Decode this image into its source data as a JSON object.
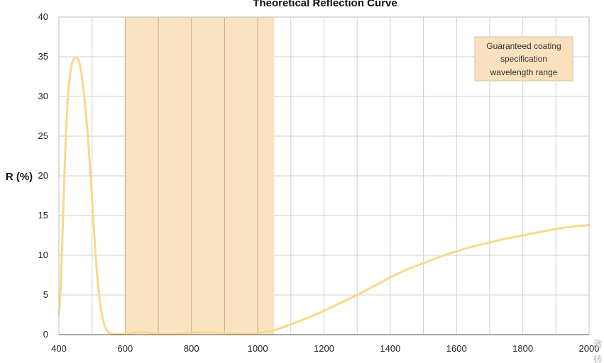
{
  "chart_data": {
    "type": "line",
    "title": "Theoretical Reflection Curve",
    "xlabel": "",
    "ylabel": "R (%)",
    "xlim": [
      400,
      2000
    ],
    "ylim": [
      0,
      40
    ],
    "x_ticks": [
      400,
      600,
      800,
      1000,
      1200,
      1400,
      1600,
      1800,
      2000
    ],
    "y_ticks": [
      0,
      5,
      10,
      15,
      20,
      25,
      30,
      35,
      40
    ],
    "grid": true,
    "legend_position": "top-right",
    "shaded_region": {
      "x_range": [
        600,
        1050
      ],
      "label": "Guaranteed coating specification wavelength range",
      "label_lines": [
        "Guaranteed coating",
        "specification",
        "wavelength range"
      ],
      "color": "#fae0bd"
    },
    "series": [
      {
        "color": "#f8d98a",
        "x": [
          400,
          405,
          410,
          415,
          420,
          425,
          430,
          440,
          450,
          455,
          460,
          465,
          470,
          480,
          490,
          500,
          510,
          520,
          530,
          540,
          550,
          560,
          570,
          580,
          590,
          600,
          620,
          640,
          660,
          680,
          700,
          720,
          740,
          760,
          780,
          800,
          820,
          840,
          860,
          880,
          900,
          920,
          940,
          960,
          980,
          1000,
          1020,
          1050,
          1100,
          1150,
          1200,
          1250,
          1300,
          1350,
          1400,
          1450,
          1500,
          1550,
          1600,
          1650,
          1700,
          1750,
          1800,
          1850,
          1900,
          1950,
          2000
        ],
        "y": [
          2.5,
          5.5,
          11.5,
          18.0,
          24.0,
          28.5,
          31.5,
          34.2,
          34.9,
          34.8,
          34.5,
          33.6,
          32.3,
          28.5,
          23.5,
          17.0,
          10.5,
          5.5,
          2.5,
          0.9,
          0.3,
          0.1,
          0.05,
          0.05,
          0.05,
          0.1,
          0.2,
          0.35,
          0.3,
          0.2,
          0.1,
          0.05,
          0.05,
          0.1,
          0.2,
          0.25,
          0.3,
          0.3,
          0.3,
          0.25,
          0.2,
          0.15,
          0.1,
          0.1,
          0.12,
          0.2,
          0.35,
          0.55,
          1.3,
          2.1,
          3.0,
          4.0,
          5.0,
          6.1,
          7.2,
          8.2,
          9.0,
          9.8,
          10.5,
          11.1,
          11.6,
          12.1,
          12.5,
          12.9,
          13.3,
          13.6,
          13.8
        ]
      }
    ]
  },
  "watermark": [
    "激",
    "转"
  ]
}
